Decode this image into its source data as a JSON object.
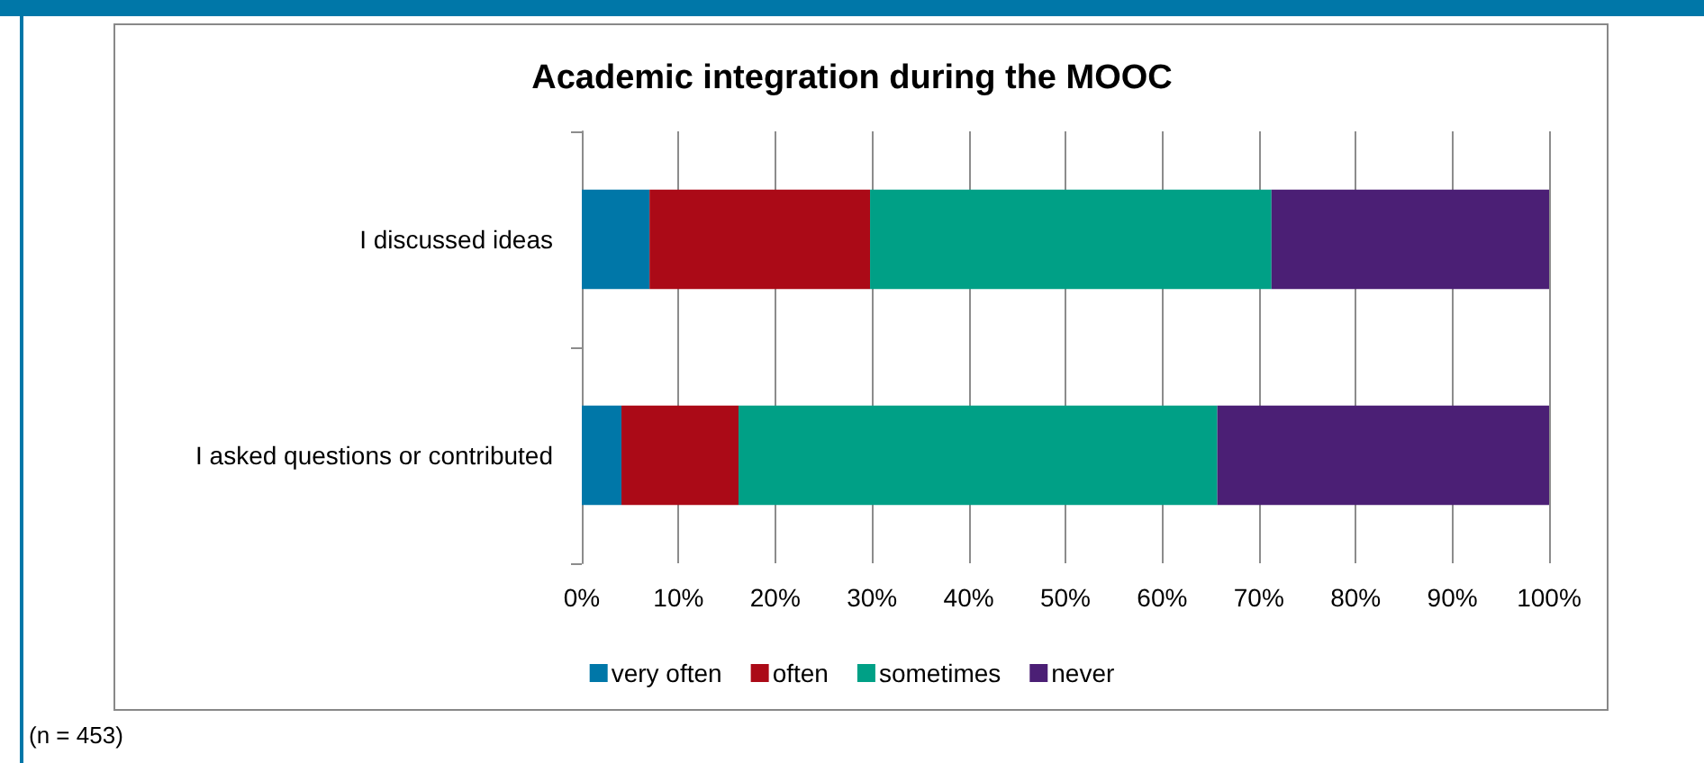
{
  "chart_data": {
    "type": "bar",
    "orientation": "horizontal",
    "stacked": true,
    "title": "Academic integration during the MOOC",
    "categories": [
      "I discussed ideas",
      "I asked questions or contributed"
    ],
    "series": [
      {
        "name": "very often",
        "color": "#0077a8",
        "values": [
          7.0,
          4.1
        ]
      },
      {
        "name": "often",
        "color": "#ab0a17",
        "values": [
          22.8,
          12.1
        ]
      },
      {
        "name": "sometimes",
        "color": "#00a086",
        "values": [
          41.5,
          49.5
        ]
      },
      {
        "name": "never",
        "color": "#4b1f75",
        "values": [
          28.7,
          34.3
        ]
      }
    ],
    "xlim": [
      0,
      100
    ],
    "xticks": [
      {
        "value": 0,
        "label": "0%"
      },
      {
        "value": 10,
        "label": "10%"
      },
      {
        "value": 20,
        "label": "20%"
      },
      {
        "value": 30,
        "label": "30%"
      },
      {
        "value": 40,
        "label": "40%"
      },
      {
        "value": 50,
        "label": "50%"
      },
      {
        "value": 60,
        "label": "60%"
      },
      {
        "value": 70,
        "label": "70%"
      },
      {
        "value": 80,
        "label": "80%"
      },
      {
        "value": 90,
        "label": "90%"
      },
      {
        "value": 100,
        "label": "100%"
      }
    ],
    "grid": "x",
    "legend": "bottom",
    "annotations": [
      "(n = 453)"
    ]
  }
}
